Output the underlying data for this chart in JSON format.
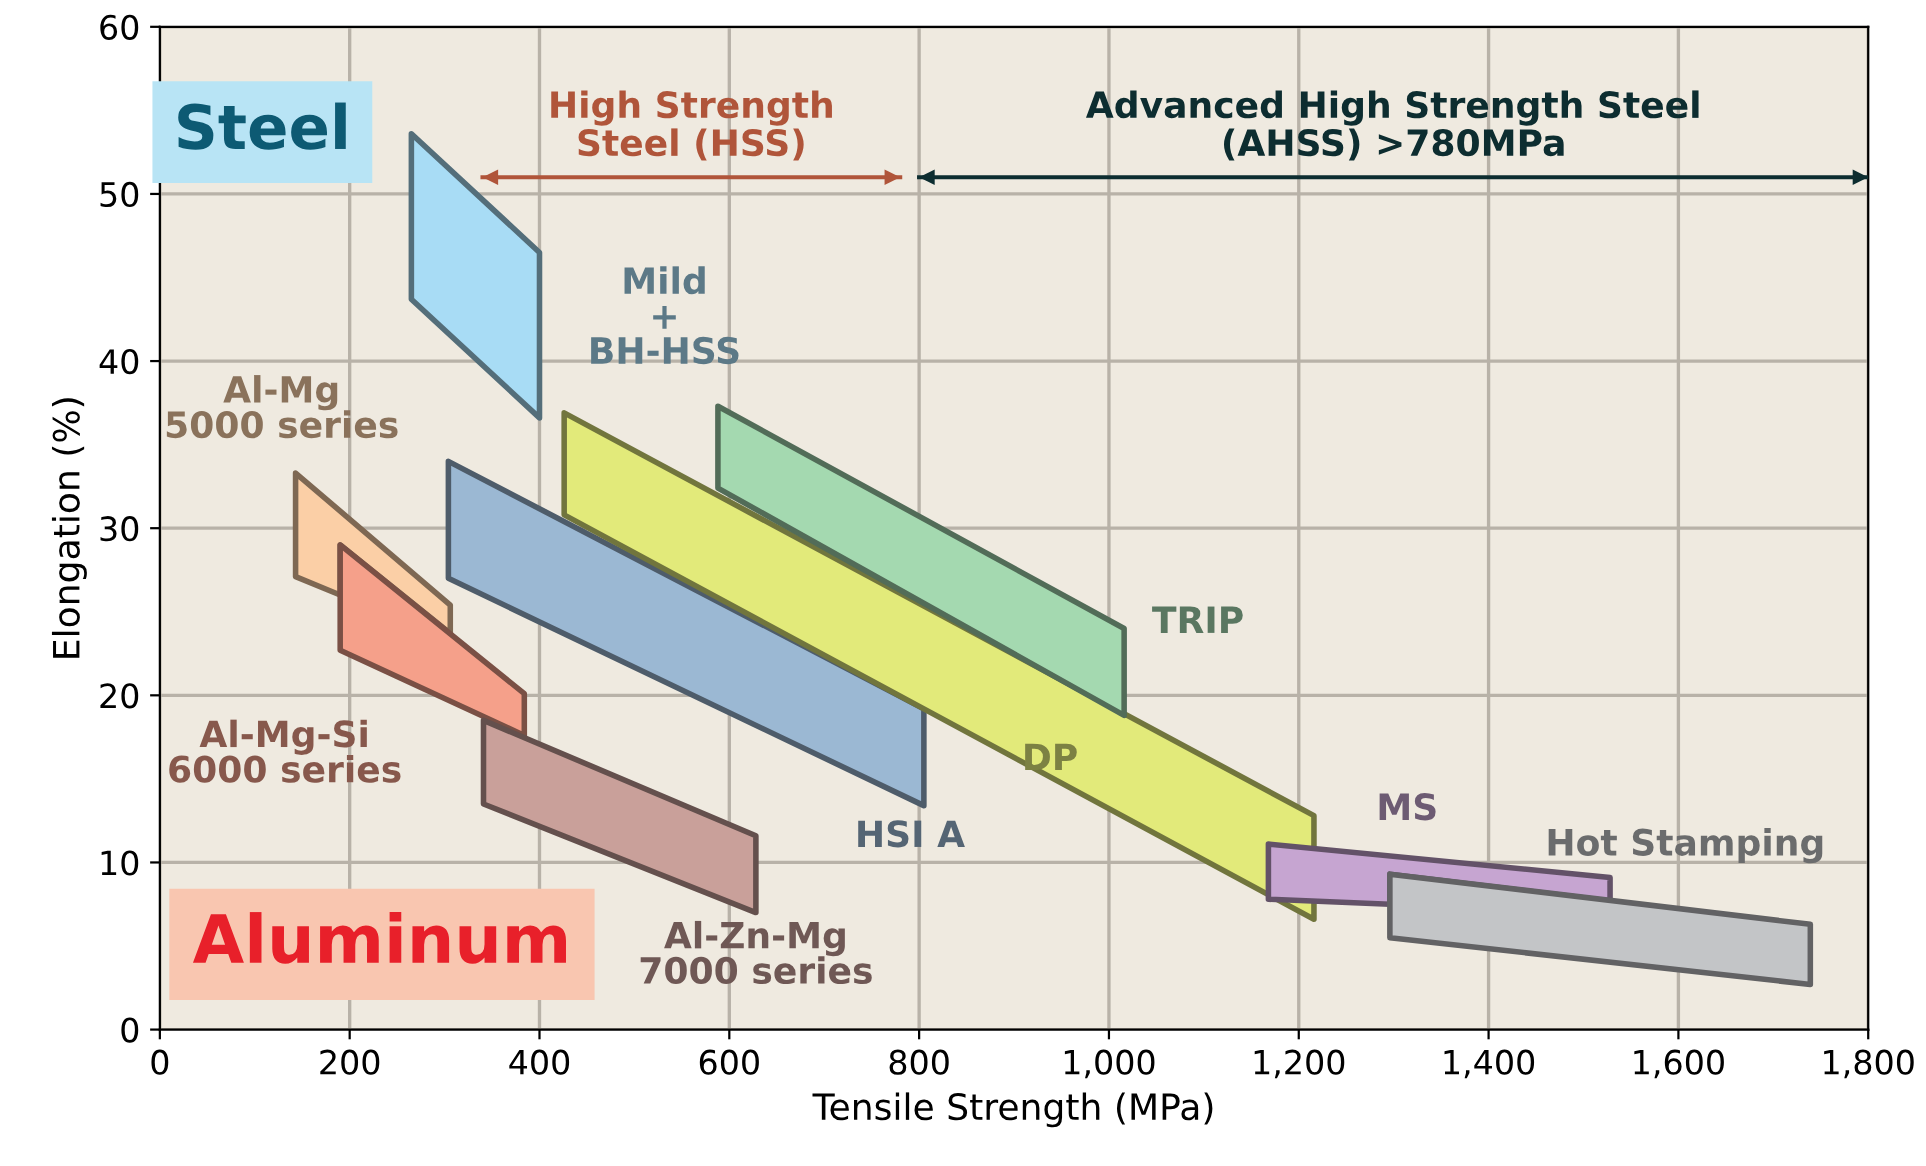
{
  "chart_data": {
    "type": "area",
    "xlabel": "Tensile Strength (MPa)",
    "ylabel": "Elongation (%)",
    "xlim": [
      0,
      1800
    ],
    "ylim": [
      0,
      60
    ],
    "xticks": [
      0,
      200,
      400,
      600,
      800,
      {
        "value": 1000,
        "label": "1,000"
      },
      {
        "value": 1200,
        "label": "1,200"
      },
      {
        "value": 1400,
        "label": "1,400"
      },
      {
        "value": 1600,
        "label": "1,600"
      },
      {
        "value": 1800,
        "label": "1,800"
      }
    ],
    "yticks": [
      0,
      10,
      20,
      30,
      40,
      50,
      60
    ],
    "grid": true,
    "legend": false,
    "annotations": [
      "Steel",
      "Aluminum"
    ],
    "series": [
      {
        "type": "line",
        "name": "High Strength\nSteel (HSS)",
        "color": "#b0553a",
        "x": [
          340,
          780
        ],
        "values": [
          51,
          51
        ]
      },
      {
        "type": "line",
        "name": "Advanced High Strength Steel\n(AHSS) >780MPa",
        "color": "#0d2d30",
        "x": [
          800,
          1800
        ],
        "values": [
          51,
          51
        ]
      },
      {
        "name": "Mild\n+\nBH-HSS",
        "color": "#a8dcf5",
        "x": [
          265,
          400,
          400,
          265
        ],
        "values": [
          53.6,
          46.5,
          36.6,
          43.7
        ]
      },
      {
        "name": "Al-Mg\n5000 series",
        "color": "#fbcfa6",
        "x": [
          143,
          306,
          306,
          190,
          190,
          143
        ],
        "values": [
          33.3,
          25.4,
          23.7,
          29.0,
          26.0,
          27.1
        ]
      },
      {
        "name": "Al-Mg-Si\n6000 series",
        "color": "#f5a08a",
        "x": [
          190,
          384,
          384,
          190
        ],
        "values": [
          29.0,
          20.1,
          17.6,
          22.7
        ]
      },
      {
        "name": "Al-Zn-Mg\n7000 series",
        "color": "#c9a09a",
        "x": [
          341,
          628,
          628,
          341
        ],
        "values": [
          18.5,
          11.6,
          7.0,
          13.5
        ]
      },
      {
        "name": "HSI A",
        "color": "#9bb8d3",
        "x": [
          304,
          805,
          805,
          304
        ],
        "values": [
          34.0,
          19.2,
          13.4,
          27.0
        ]
      },
      {
        "name": "DP",
        "color": "#e2ea7a",
        "x": [
          426,
          1216,
          1216,
          426
        ],
        "values": [
          36.9,
          12.8,
          6.6,
          30.8
        ]
      },
      {
        "name": "TRIP",
        "color": "#a4d9b0",
        "x": [
          588,
          1016,
          1016,
          588
        ],
        "values": [
          37.3,
          24.0,
          18.8,
          32.4
        ]
      },
      {
        "name": "MS",
        "color": "#c6a5d1",
        "x": [
          1168,
          1528,
          1528,
          1296,
          1296,
          1168
        ],
        "values": [
          11.1,
          9.1,
          7.7,
          9.3,
          7.5,
          7.8
        ]
      },
      {
        "name": "Hot Stamping",
        "color": "#c3c5c7",
        "x": [
          1296,
          1739,
          1739,
          1296
        ],
        "values": [
          9.3,
          6.3,
          2.7,
          5.5
        ]
      }
    ]
  }
}
